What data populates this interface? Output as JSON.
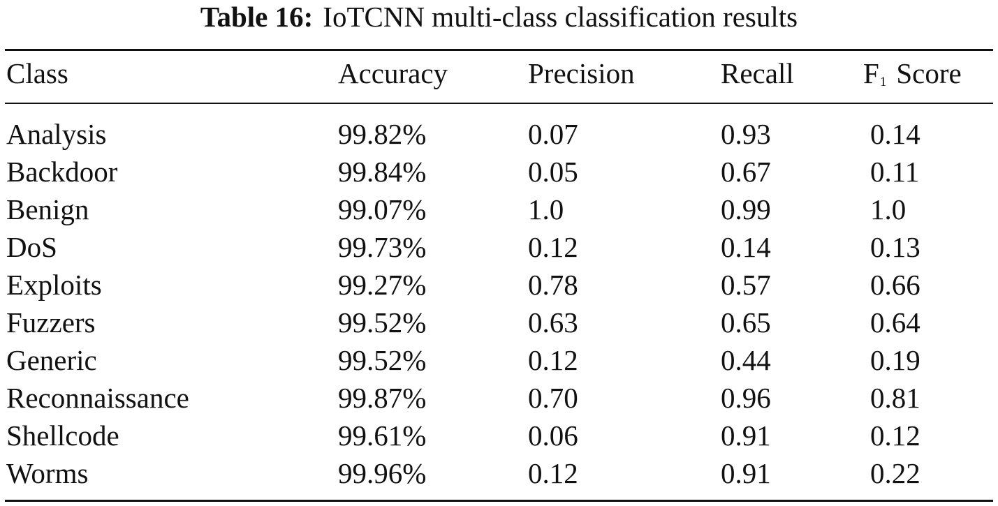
{
  "table": {
    "caption_label": "Table 16:",
    "caption_text": "IoTCNN multi-class classification results",
    "headers": {
      "class": "Class",
      "accuracy": "Accuracy",
      "precision": "Precision",
      "recall": "Recall",
      "f1_main": "F",
      "f1_sub": "1",
      "f1_rest": "Score"
    },
    "rows": [
      {
        "class": "Analysis",
        "accuracy": "99.82%",
        "precision": "0.07",
        "recall": "0.93",
        "f1": "0.14"
      },
      {
        "class": "Backdoor",
        "accuracy": "99.84%",
        "precision": "0.05",
        "recall": "0.67",
        "f1": "0.11"
      },
      {
        "class": "Benign",
        "accuracy": "99.07%",
        "precision": "1.0",
        "recall": "0.99",
        "f1": "1.0"
      },
      {
        "class": "DoS",
        "accuracy": "99.73%",
        "precision": "0.12",
        "recall": "0.14",
        "f1": "0.13"
      },
      {
        "class": "Exploits",
        "accuracy": "99.27%",
        "precision": "0.78",
        "recall": "0.57",
        "f1": "0.66"
      },
      {
        "class": "Fuzzers",
        "accuracy": "99.52%",
        "precision": "0.63",
        "recall": "0.65",
        "f1": "0.64"
      },
      {
        "class": "Generic",
        "accuracy": "99.52%",
        "precision": "0.12",
        "recall": "0.44",
        "f1": "0.19"
      },
      {
        "class": "Reconnaissance",
        "accuracy": "99.87%",
        "precision": "0.70",
        "recall": "0.96",
        "f1": "0.81"
      },
      {
        "class": "Shellcode",
        "accuracy": "99.61%",
        "precision": "0.06",
        "recall": "0.91",
        "f1": "0.12"
      },
      {
        "class": "Worms",
        "accuracy": "99.96%",
        "precision": "0.12",
        "recall": "0.91",
        "f1": "0.22"
      }
    ]
  }
}
